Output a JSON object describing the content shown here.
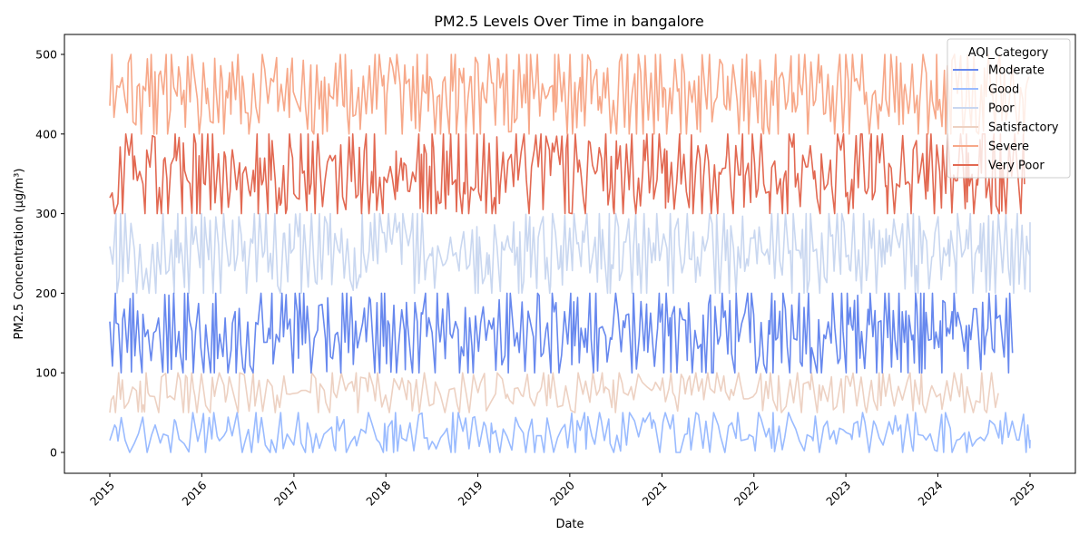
{
  "chart_data": {
    "type": "line",
    "title": "PM2.5 Levels Over Time in bangalore",
    "xlabel": "Date",
    "ylabel": "PM2.5 Concentration (µg/m³)",
    "xlim": [
      "2015-01-01",
      "2025-01-01"
    ],
    "ylim": [
      0,
      500
    ],
    "x_ticks": [
      "2015",
      "2016",
      "2017",
      "2018",
      "2019",
      "2020",
      "2021",
      "2022",
      "2023",
      "2024",
      "2025"
    ],
    "y_ticks": [
      0,
      100,
      200,
      300,
      400,
      500
    ],
    "grid": false,
    "legend": {
      "title": "AQI_Category",
      "placement": "top-right"
    },
    "series": [
      {
        "name": "Moderate",
        "color": "#6788ee",
        "range": [
          100,
          200
        ],
        "points": 438,
        "values_sample": [
          171,
          124,
          197,
          158,
          136,
          112,
          188,
          145,
          103,
          176,
          132,
          191,
          118,
          164,
          150,
          108,
          183,
          127,
          169,
          141
        ]
      },
      {
        "name": "Good",
        "color": "#9abbff",
        "range": [
          0,
          50
        ],
        "points": 292,
        "values_sample": [
          23,
          15,
          38,
          9,
          44,
          27,
          4,
          31,
          18,
          46,
          12,
          35,
          22,
          6,
          41,
          29,
          14,
          37,
          20,
          2
        ]
      },
      {
        "name": "Poor",
        "color": "#c9d7f0",
        "range": [
          200,
          300
        ],
        "points": 438,
        "values_sample": [
          270,
          225,
          288,
          214,
          253,
          296,
          232,
          267,
          208,
          281,
          244,
          219,
          292,
          237,
          259,
          203,
          276,
          248,
          226,
          262
        ]
      },
      {
        "name": "Satisfactory",
        "color": "#edd1c2",
        "range": [
          50,
          100
        ],
        "points": 292,
        "values_sample": [
          57,
          78,
          92,
          64,
          85,
          53,
          97,
          71,
          60,
          89,
          75,
          55,
          94,
          68,
          82,
          58,
          99,
          73,
          62,
          87
        ]
      },
      {
        "name": "Severe",
        "color": "#f7a889",
        "range": [
          400,
          500
        ],
        "points": 438,
        "values_sample": [
          433,
          487,
          415,
          462,
          498,
          426,
          471,
          408,
          455,
          492,
          440,
          419,
          478,
          447,
          403,
          485,
          429,
          466,
          412,
          495
        ]
      },
      {
        "name": "Very Poor",
        "color": "#e26952",
        "range": [
          300,
          400
        ],
        "points": 438,
        "values_sample": [
          322,
          369,
          307,
          356,
          391,
          338,
          312,
          377,
          345,
          398,
          326,
          362,
          304,
          383,
          349,
          317,
          372,
          335,
          394,
          359
        ]
      }
    ]
  }
}
